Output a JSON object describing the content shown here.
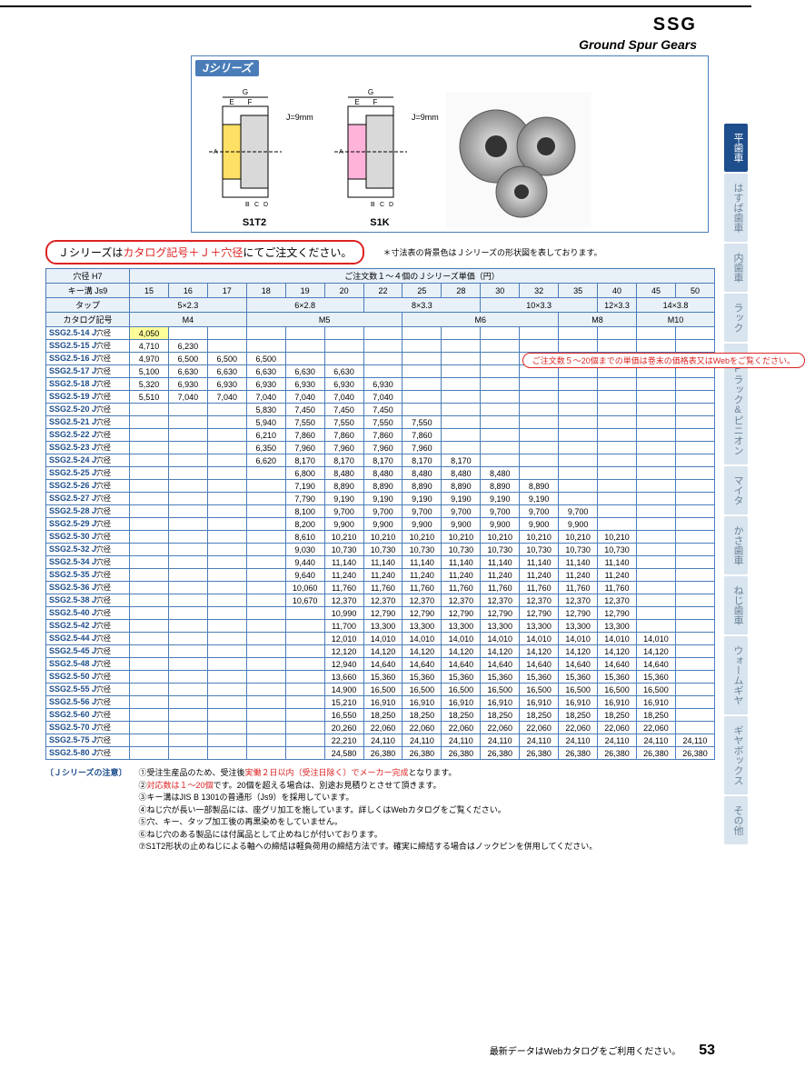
{
  "header": {
    "code": "SSG",
    "title": "Ground Spur Gears"
  },
  "sideTabs": [
    {
      "label": "平歯車",
      "active": true
    },
    {
      "label": "はすば歯車",
      "active": false
    },
    {
      "label": "内歯車",
      "active": false
    },
    {
      "label": "ラック",
      "active": false
    },
    {
      "label": "CPラック&ピニオン",
      "active": false
    },
    {
      "label": "マイタ",
      "active": false
    },
    {
      "label": "かさ歯車",
      "active": false
    },
    {
      "label": "ねじ歯車",
      "active": false
    },
    {
      "label": "ウォームギヤ",
      "active": false
    },
    {
      "label": "ギヤボックス",
      "active": false
    },
    {
      "label": "その他",
      "active": false
    }
  ],
  "diagrams": {
    "badge": "Jシリーズ",
    "jValue": "J=9mm",
    "label1": "S1T2",
    "label2": "S1K"
  },
  "orderNote": {
    "prefix": "Ｊシリーズは",
    "highlight": "カタログ記号＋Ｊ＋穴径",
    "suffix": "にてご注文ください。"
  },
  "dimNote": "＊寸法表の背景色はＪシリーズの形状図を表しております。",
  "table": {
    "headerRows": {
      "holeH7": "穴径 H7",
      "priceTitle": "ご注文数１～４個のＪシリーズ単価（円）",
      "keyJs9": "キー溝 Js9",
      "tap": "タップ",
      "catalog": "カタログ記号",
      "cols": [
        "15",
        "16",
        "17",
        "18",
        "19",
        "20",
        "22",
        "25",
        "28",
        "30",
        "32",
        "35",
        "40",
        "45",
        "50"
      ],
      "tapVals": [
        "5×2.3",
        "6×2.8",
        "8×3.3",
        "10×3.3",
        "12×3.3",
        "14×3.8"
      ],
      "tapSpans": [
        3,
        3,
        3,
        3,
        1,
        2
      ],
      "catVals": [
        "M4",
        "M5",
        "M6",
        "M8",
        "M10"
      ],
      "catSpans": [
        3,
        4,
        4,
        2,
        2
      ]
    },
    "inlineNote": "ご注文数５～20個までの単価は巻末の価格表又はWebをご覧ください。",
    "rows": [
      {
        "label": "SSG2.5-14",
        "v": [
          "4,050",
          "",
          "",
          "",
          "",
          "",
          "",
          "",
          "",
          "",
          "",
          "",
          "",
          "",
          ""
        ],
        "hilite": [
          0
        ]
      },
      {
        "label": "SSG2.5-15",
        "v": [
          "4,710",
          "6,230",
          "",
          "",
          "",
          "",
          "",
          "",
          "",
          "",
          "",
          "",
          "",
          "",
          ""
        ]
      },
      {
        "label": "SSG2.5-16",
        "v": [
          "4,970",
          "6,500",
          "6,500",
          "6,500",
          "",
          "",
          "",
          "",
          "",
          "",
          "",
          "",
          "",
          "",
          ""
        ],
        "noteRow": true
      },
      {
        "label": "SSG2.5-17",
        "v": [
          "5,100",
          "6,630",
          "6,630",
          "6,630",
          "6,630",
          "6,630",
          "",
          "",
          "",
          "",
          "",
          "",
          "",
          "",
          ""
        ]
      },
      {
        "label": "SSG2.5-18",
        "v": [
          "5,320",
          "6,930",
          "6,930",
          "6,930",
          "6,930",
          "6,930",
          "6,930",
          "",
          "",
          "",
          "",
          "",
          "",
          "",
          ""
        ]
      },
      {
        "label": "SSG2.5-19",
        "v": [
          "5,510",
          "7,040",
          "7,040",
          "7,040",
          "7,040",
          "7,040",
          "7,040",
          "",
          "",
          "",
          "",
          "",
          "",
          "",
          ""
        ]
      },
      {
        "label": "SSG2.5-20",
        "v": [
          "",
          "",
          "",
          "5,830",
          "7,450",
          "7,450",
          "7,450",
          "",
          "",
          "",
          "",
          "",
          "",
          "",
          ""
        ]
      },
      {
        "label": "SSG2.5-21",
        "v": [
          "",
          "",
          "",
          "5,940",
          "7,550",
          "7,550",
          "7,550",
          "7,550",
          "",
          "",
          "",
          "",
          "",
          "",
          ""
        ]
      },
      {
        "label": "SSG2.5-22",
        "v": [
          "",
          "",
          "",
          "6,210",
          "7,860",
          "7,860",
          "7,860",
          "7,860",
          "",
          "",
          "",
          "",
          "",
          "",
          ""
        ]
      },
      {
        "label": "SSG2.5-23",
        "v": [
          "",
          "",
          "",
          "6,350",
          "7,960",
          "7,960",
          "7,960",
          "7,960",
          "",
          "",
          "",
          "",
          "",
          "",
          ""
        ]
      },
      {
        "label": "SSG2.5-24",
        "v": [
          "",
          "",
          "",
          "6,620",
          "8,170",
          "8,170",
          "8,170",
          "8,170",
          "8,170",
          "",
          "",
          "",
          "",
          "",
          ""
        ]
      },
      {
        "label": "SSG2.5-25",
        "v": [
          "",
          "",
          "",
          "",
          "6,800",
          "8,480",
          "8,480",
          "8,480",
          "8,480",
          "8,480",
          "",
          "",
          "",
          "",
          ""
        ]
      },
      {
        "label": "SSG2.5-26",
        "v": [
          "",
          "",
          "",
          "",
          "7,190",
          "8,890",
          "8,890",
          "8,890",
          "8,890",
          "8,890",
          "8,890",
          "",
          "",
          "",
          ""
        ]
      },
      {
        "label": "SSG2.5-27",
        "v": [
          "",
          "",
          "",
          "",
          "7,790",
          "9,190",
          "9,190",
          "9,190",
          "9,190",
          "9,190",
          "9,190",
          "",
          "",
          "",
          ""
        ]
      },
      {
        "label": "SSG2.5-28",
        "v": [
          "",
          "",
          "",
          "",
          "8,100",
          "9,700",
          "9,700",
          "9,700",
          "9,700",
          "9,700",
          "9,700",
          "9,700",
          "",
          "",
          ""
        ]
      },
      {
        "label": "SSG2.5-29",
        "v": [
          "",
          "",
          "",
          "",
          "8,200",
          "9,900",
          "9,900",
          "9,900",
          "9,900",
          "9,900",
          "9,900",
          "9,900",
          "",
          "",
          ""
        ]
      },
      {
        "label": "SSG2.5-30",
        "v": [
          "",
          "",
          "",
          "",
          "8,610",
          "10,210",
          "10,210",
          "10,210",
          "10,210",
          "10,210",
          "10,210",
          "10,210",
          "10,210",
          "",
          ""
        ]
      },
      {
        "label": "SSG2.5-32",
        "v": [
          "",
          "",
          "",
          "",
          "9,030",
          "10,730",
          "10,730",
          "10,730",
          "10,730",
          "10,730",
          "10,730",
          "10,730",
          "10,730",
          "",
          ""
        ]
      },
      {
        "label": "SSG2.5-34",
        "v": [
          "",
          "",
          "",
          "",
          "9,440",
          "11,140",
          "11,140",
          "11,140",
          "11,140",
          "11,140",
          "11,140",
          "11,140",
          "11,140",
          "",
          ""
        ]
      },
      {
        "label": "SSG2.5-35",
        "v": [
          "",
          "",
          "",
          "",
          "9,640",
          "11,240",
          "11,240",
          "11,240",
          "11,240",
          "11,240",
          "11,240",
          "11,240",
          "11,240",
          "",
          ""
        ]
      },
      {
        "label": "SSG2.5-36",
        "v": [
          "",
          "",
          "",
          "",
          "10,060",
          "11,760",
          "11,760",
          "11,760",
          "11,760",
          "11,760",
          "11,760",
          "11,760",
          "11,760",
          "",
          ""
        ]
      },
      {
        "label": "SSG2.5-38",
        "v": [
          "",
          "",
          "",
          "",
          "10,670",
          "12,370",
          "12,370",
          "12,370",
          "12,370",
          "12,370",
          "12,370",
          "12,370",
          "12,370",
          "",
          ""
        ]
      },
      {
        "label": "SSG2.5-40",
        "v": [
          "",
          "",
          "",
          "",
          "",
          "10,990",
          "12,790",
          "12,790",
          "12,790",
          "12,790",
          "12,790",
          "12,790",
          "12,790",
          "",
          ""
        ]
      },
      {
        "label": "SSG2.5-42",
        "v": [
          "",
          "",
          "",
          "",
          "",
          "11,700",
          "13,300",
          "13,300",
          "13,300",
          "13,300",
          "13,300",
          "13,300",
          "13,300",
          "",
          ""
        ]
      },
      {
        "label": "SSG2.5-44",
        "v": [
          "",
          "",
          "",
          "",
          "",
          "12,010",
          "14,010",
          "14,010",
          "14,010",
          "14,010",
          "14,010",
          "14,010",
          "14,010",
          "14,010",
          ""
        ]
      },
      {
        "label": "SSG2.5-45",
        "v": [
          "",
          "",
          "",
          "",
          "",
          "12,120",
          "14,120",
          "14,120",
          "14,120",
          "14,120",
          "14,120",
          "14,120",
          "14,120",
          "14,120",
          ""
        ]
      },
      {
        "label": "SSG2.5-48",
        "v": [
          "",
          "",
          "",
          "",
          "",
          "12,940",
          "14,640",
          "14,640",
          "14,640",
          "14,640",
          "14,640",
          "14,640",
          "14,640",
          "14,640",
          ""
        ]
      },
      {
        "label": "SSG2.5-50",
        "v": [
          "",
          "",
          "",
          "",
          "",
          "13,660",
          "15,360",
          "15,360",
          "15,360",
          "15,360",
          "15,360",
          "15,360",
          "15,360",
          "15,360",
          ""
        ]
      },
      {
        "label": "SSG2.5-55",
        "v": [
          "",
          "",
          "",
          "",
          "",
          "14,900",
          "16,500",
          "16,500",
          "16,500",
          "16,500",
          "16,500",
          "16,500",
          "16,500",
          "16,500",
          ""
        ]
      },
      {
        "label": "SSG2.5-56",
        "v": [
          "",
          "",
          "",
          "",
          "",
          "15,210",
          "16,910",
          "16,910",
          "16,910",
          "16,910",
          "16,910",
          "16,910",
          "16,910",
          "16,910",
          ""
        ]
      },
      {
        "label": "SSG2.5-60",
        "v": [
          "",
          "",
          "",
          "",
          "",
          "16,550",
          "18,250",
          "18,250",
          "18,250",
          "18,250",
          "18,250",
          "18,250",
          "18,250",
          "18,250",
          ""
        ]
      },
      {
        "label": "SSG2.5-70",
        "v": [
          "",
          "",
          "",
          "",
          "",
          "20,260",
          "22,060",
          "22,060",
          "22,060",
          "22,060",
          "22,060",
          "22,060",
          "22,060",
          "22,060",
          ""
        ]
      },
      {
        "label": "SSG2.5-75",
        "v": [
          "",
          "",
          "",
          "",
          "",
          "22,210",
          "24,110",
          "24,110",
          "24,110",
          "24,110",
          "24,110",
          "24,110",
          "24,110",
          "24,110",
          "24,110"
        ]
      },
      {
        "label": "SSG2.5-80",
        "v": [
          "",
          "",
          "",
          "",
          "",
          "24,580",
          "26,380",
          "26,380",
          "26,380",
          "26,380",
          "26,380",
          "26,380",
          "26,380",
          "26,380",
          "26,380"
        ]
      }
    ]
  },
  "notes": {
    "title": "〔Ｊシリーズの注意〕",
    "items": [
      {
        "pre": "①受注生産品のため、受注後",
        "red": "実働２日以内（受注日除く）でメーカー完成",
        "post": "となります。"
      },
      {
        "pre": "②",
        "red": "対応数は１～20個",
        "post": "です。20個を超える場合は、別途お見積りとさせて頂きます。"
      },
      {
        "pre": "③キー溝はJIS B 1301の普通形（Js9）を採用しています。",
        "red": "",
        "post": ""
      },
      {
        "pre": "④ねじ穴が長い一部製品には、座グリ加工を施しています。詳しくはWebカタログをご覧ください。",
        "red": "",
        "post": ""
      },
      {
        "pre": "⑤穴、キー、タップ加工後の再黒染めをしていません。",
        "red": "",
        "post": ""
      },
      {
        "pre": "⑥ねじ穴のある製品には付属品として止めねじが付いております。",
        "red": "",
        "post": ""
      },
      {
        "pre": "⑦S1T2形状の止めねじによる軸への締結は軽負荷用の締結方法です。確実に締結する場合はノックピンを併用してください。",
        "red": "",
        "post": ""
      }
    ]
  },
  "footer": {
    "text": "最新データはWebカタログをご利用ください。",
    "page": "53"
  }
}
